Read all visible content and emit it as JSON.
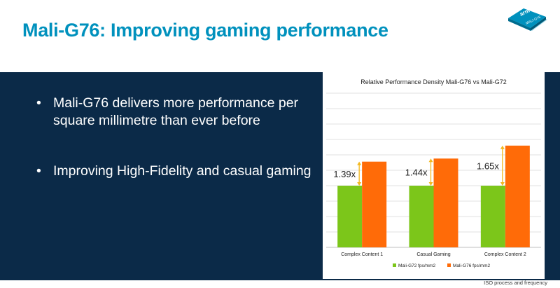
{
  "slide": {
    "title": "Mali-G76: Improving gaming performance",
    "logo_text": "arm",
    "logo_subtext": "MALI-G76",
    "bullets": [
      "Mali-G76 delivers more performance per square millimetre than ever before",
      "Improving High-Fidelity and casual gaming"
    ],
    "footnote": "ISO process and frequency"
  },
  "colors": {
    "title": "#0091bd",
    "panel_bg": "#0b2a48",
    "g72": "#7cc61a",
    "g76": "#ff6b08",
    "arrow": "#f3b81d"
  },
  "chart_data": {
    "type": "bar",
    "title": "Relative Performance Density Mali-G76 vs Mali-G72",
    "categories": [
      "Complex Content 1",
      "Casual Gaming",
      "Complex Content 2"
    ],
    "series": [
      {
        "name": "Mali-G72 fps/mm2",
        "values": [
          1,
          1,
          1
        ]
      },
      {
        "name": "Mali-G76 fps/mm2",
        "values": [
          1.39,
          1.44,
          1.65
        ]
      }
    ],
    "annotations": [
      "1.39x",
      "1.44x",
      "1.65x"
    ],
    "ylim": [
      0,
      2.5
    ],
    "grid": true,
    "legend": "bottom",
    "xlabel": "",
    "ylabel": ""
  }
}
